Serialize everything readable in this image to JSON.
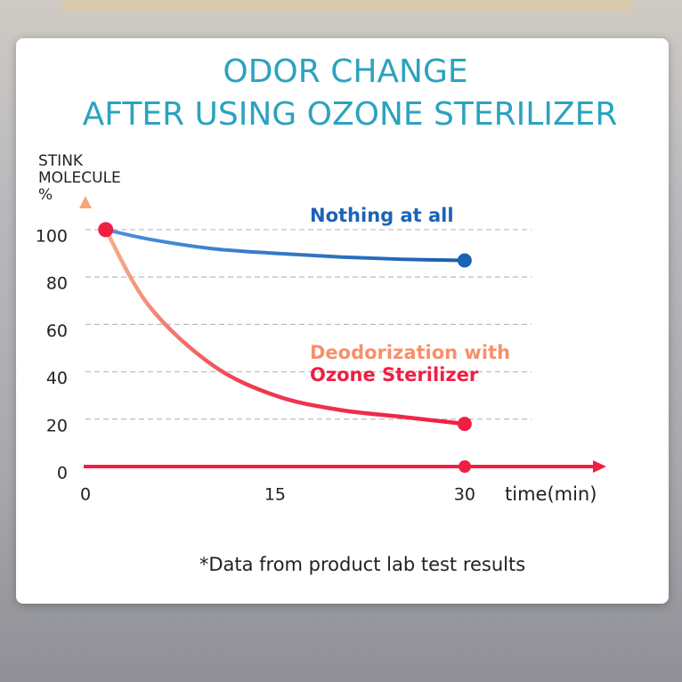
{
  "chart_data": {
    "type": "line",
    "title": [
      "ODOR CHANGE",
      "AFTER USING OZONE STERILIZER"
    ],
    "y_label": [
      "STINK",
      "MOLECULE",
      "%"
    ],
    "x_label": "time(min)",
    "note": "*Data from product lab test results",
    "x": [
      1.6,
      5,
      10,
      15,
      20,
      25,
      30
    ],
    "series": [
      {
        "name": "Nothing at all",
        "color": "#1a63b8",
        "values": [
          100,
          96,
          92,
          90,
          88.5,
          87.5,
          87
        ]
      },
      {
        "name": "Deodorization with Ozone Sterilizer",
        "color": "#f01e42",
        "values": [
          100,
          68,
          43,
          30,
          24,
          21,
          18
        ]
      }
    ],
    "xlim": [
      0,
      41
    ],
    "xticks": [
      0,
      15,
      30
    ],
    "ylim": [
      0,
      112
    ],
    "yticks": [
      0,
      20,
      40,
      60,
      80,
      100
    ],
    "grid": true
  }
}
